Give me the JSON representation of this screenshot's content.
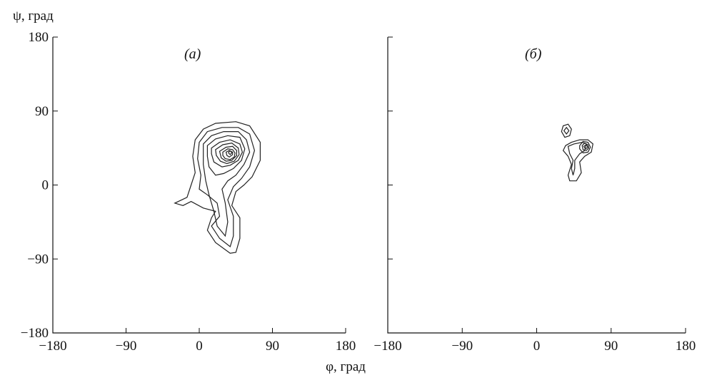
{
  "chart_data": [
    {
      "type": "contour",
      "panel_label": "(а)",
      "xlabel": "φ, град",
      "ylabel": "ψ, град",
      "xlim": [
        -180,
        180
      ],
      "ylim": [
        -180,
        180
      ],
      "xticks": [
        "−180",
        "−90",
        "0",
        "90",
        "180"
      ],
      "yticks": [
        "−180",
        "−90",
        "0",
        "90",
        "180"
      ],
      "grid": false,
      "peaks": [
        {
          "phi": 40,
          "psi": 40
        }
      ],
      "contours": [
        [
          [
            -5,
            55
          ],
          [
            5,
            68
          ],
          [
            20,
            75
          ],
          [
            45,
            77
          ],
          [
            62,
            72
          ],
          [
            75,
            52
          ],
          [
            75,
            30
          ],
          [
            65,
            10
          ],
          [
            55,
            0
          ],
          [
            45,
            -8
          ],
          [
            40,
            -25
          ],
          [
            50,
            -40
          ],
          [
            50,
            -65
          ],
          [
            45,
            -82
          ],
          [
            38,
            -83
          ],
          [
            20,
            -70
          ],
          [
            10,
            -55
          ],
          [
            15,
            -40
          ],
          [
            20,
            -32
          ],
          [
            5,
            -28
          ],
          [
            -10,
            -20
          ],
          [
            -20,
            -25
          ],
          [
            -30,
            -22
          ],
          [
            -15,
            -15
          ],
          [
            -10,
            0
          ],
          [
            -5,
            15
          ],
          [
            -8,
            35
          ],
          [
            -5,
            55
          ]
        ],
        [
          [
            0,
            52
          ],
          [
            10,
            65
          ],
          [
            28,
            70
          ],
          [
            48,
            70
          ],
          [
            62,
            62
          ],
          [
            68,
            42
          ],
          [
            62,
            22
          ],
          [
            52,
            8
          ],
          [
            42,
            -2
          ],
          [
            35,
            -18
          ],
          [
            42,
            -38
          ],
          [
            42,
            -62
          ],
          [
            38,
            -75
          ],
          [
            25,
            -65
          ],
          [
            15,
            -50
          ],
          [
            25,
            -38
          ],
          [
            22,
            -22
          ],
          [
            10,
            -12
          ],
          [
            0,
            -5
          ],
          [
            2,
            12
          ],
          [
            -2,
            32
          ],
          [
            0,
            52
          ]
        ],
        [
          [
            5,
            50
          ],
          [
            15,
            60
          ],
          [
            30,
            65
          ],
          [
            48,
            65
          ],
          [
            58,
            55
          ],
          [
            62,
            40
          ],
          [
            55,
            25
          ],
          [
            45,
            12
          ],
          [
            35,
            5
          ],
          [
            28,
            -5
          ],
          [
            32,
            -22
          ],
          [
            35,
            -45
          ],
          [
            32,
            -62
          ],
          [
            22,
            -50
          ],
          [
            18,
            -32
          ],
          [
            12,
            -12
          ],
          [
            8,
            5
          ],
          [
            5,
            25
          ],
          [
            5,
            50
          ]
        ],
        [
          [
            10,
            48
          ],
          [
            20,
            56
          ],
          [
            35,
            60
          ],
          [
            50,
            58
          ],
          [
            56,
            44
          ],
          [
            52,
            30
          ],
          [
            42,
            20
          ],
          [
            30,
            14
          ],
          [
            20,
            12
          ],
          [
            12,
            22
          ],
          [
            10,
            35
          ],
          [
            10,
            48
          ]
        ],
        [
          [
            15,
            45
          ],
          [
            25,
            52
          ],
          [
            38,
            55
          ],
          [
            50,
            50
          ],
          [
            53,
            40
          ],
          [
            48,
            30
          ],
          [
            38,
            24
          ],
          [
            28,
            22
          ],
          [
            18,
            28
          ],
          [
            15,
            38
          ],
          [
            15,
            45
          ]
        ],
        [
          [
            20,
            43
          ],
          [
            29,
            49
          ],
          [
            40,
            51
          ],
          [
            48,
            45
          ],
          [
            49,
            37
          ],
          [
            43,
            29
          ],
          [
            34,
            26
          ],
          [
            26,
            29
          ],
          [
            21,
            36
          ],
          [
            20,
            43
          ]
        ],
        [
          [
            25,
            41
          ],
          [
            33,
            46
          ],
          [
            41,
            47
          ],
          [
            46,
            42
          ],
          [
            46,
            36
          ],
          [
            40,
            30
          ],
          [
            33,
            29
          ],
          [
            27,
            33
          ],
          [
            25,
            41
          ]
        ],
        [
          [
            29,
            40
          ],
          [
            35,
            44
          ],
          [
            41,
            43
          ],
          [
            44,
            39
          ],
          [
            43,
            34
          ],
          [
            38,
            31
          ],
          [
            32,
            32
          ],
          [
            29,
            36
          ],
          [
            29,
            40
          ]
        ],
        [
          [
            33,
            40
          ],
          [
            37,
            42
          ],
          [
            41,
            40
          ],
          [
            41,
            37
          ],
          [
            37,
            34
          ],
          [
            34,
            36
          ],
          [
            33,
            40
          ]
        ],
        [
          [
            37,
            41
          ],
          [
            39,
            41
          ],
          [
            40,
            39
          ],
          [
            38,
            37
          ],
          [
            36,
            39
          ],
          [
            37,
            41
          ]
        ]
      ]
    },
    {
      "type": "contour",
      "panel_label": "(б)",
      "xlabel": "",
      "ylabel": "",
      "xlim": [
        -180,
        180
      ],
      "ylim": [
        -180,
        180
      ],
      "xticks": [
        "−180",
        "−90",
        "0",
        "90",
        "180"
      ],
      "yticks": [],
      "grid": false,
      "peaks": [
        {
          "phi": 35,
          "psi": 65
        },
        {
          "phi": 60,
          "psi": 45
        }
      ],
      "contours": [
        [
          [
            30,
            65
          ],
          [
            32,
            72
          ],
          [
            38,
            74
          ],
          [
            42,
            68
          ],
          [
            40,
            60
          ],
          [
            34,
            58
          ],
          [
            30,
            65
          ]
        ],
        [
          [
            33,
            66
          ],
          [
            36,
            70
          ],
          [
            39,
            66
          ],
          [
            36,
            62
          ],
          [
            33,
            66
          ]
        ],
        [
          [
            35,
            48
          ],
          [
            42,
            52
          ],
          [
            52,
            55
          ],
          [
            62,
            55
          ],
          [
            68,
            50
          ],
          [
            66,
            40
          ],
          [
            58,
            35
          ],
          [
            52,
            28
          ],
          [
            54,
            15
          ],
          [
            48,
            5
          ],
          [
            40,
            5
          ],
          [
            38,
            12
          ],
          [
            42,
            25
          ],
          [
            38,
            35
          ],
          [
            32,
            42
          ],
          [
            35,
            48
          ]
        ],
        [
          [
            38,
            47
          ],
          [
            45,
            50
          ],
          [
            55,
            52
          ],
          [
            60,
            50
          ],
          [
            58,
            42
          ],
          [
            52,
            38
          ],
          [
            46,
            30
          ],
          [
            46,
            20
          ],
          [
            44,
            12
          ],
          [
            42,
            20
          ],
          [
            44,
            30
          ],
          [
            40,
            38
          ],
          [
            38,
            47
          ]
        ],
        [
          [
            52,
            48
          ],
          [
            56,
            53
          ],
          [
            62,
            52
          ],
          [
            65,
            46
          ],
          [
            62,
            40
          ],
          [
            56,
            39
          ],
          [
            52,
            44
          ],
          [
            52,
            48
          ]
        ],
        [
          [
            55,
            48
          ],
          [
            58,
            51
          ],
          [
            62,
            49
          ],
          [
            63,
            45
          ],
          [
            60,
            42
          ],
          [
            56,
            43
          ],
          [
            55,
            48
          ]
        ],
        [
          [
            57,
            47
          ],
          [
            60,
            49
          ],
          [
            62,
            46
          ],
          [
            59,
            44
          ],
          [
            57,
            47
          ]
        ]
      ]
    }
  ]
}
